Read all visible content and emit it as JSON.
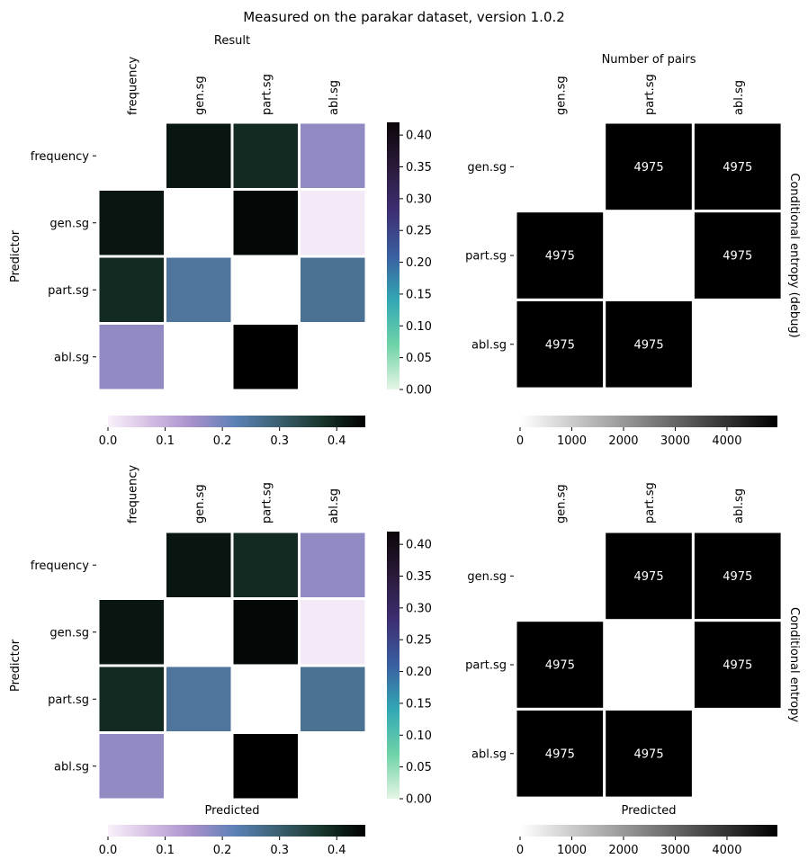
{
  "figure": {
    "title": "Measured on the parakar dataset, version 1.0.2"
  },
  "colorscales": {
    "cubehelix_bugn": [
      "#e6f5e6",
      "#6fd3a8",
      "#32a8b4",
      "#3a5fa0",
      "#3d2f73",
      "#2a1a3a",
      "#0b0508"
    ],
    "magma_purple": [
      "#f9f1fa",
      "#d4bde3",
      "#a58fca",
      "#5a80b4",
      "#3a5f6e",
      "#17352b",
      "#000000"
    ],
    "greys": [
      "#ffffff",
      "#000000"
    ]
  },
  "chart_data": [
    {
      "type": "heatmap",
      "panel": "top-left",
      "title": "Result",
      "xlabel": "",
      "ylabel": "Predictor",
      "columns": [
        "frequency",
        "gen.sg",
        "part.sg",
        "abl.sg"
      ],
      "rows": [
        "frequency",
        "gen.sg",
        "part.sg",
        "abl.sg"
      ],
      "values": [
        [
          null,
          0.42,
          0.39,
          0.17
        ],
        [
          0.42,
          null,
          0.44,
          0.01
        ],
        [
          0.39,
          0.25,
          null,
          0.26
        ],
        [
          0.17,
          null,
          0.45,
          null
        ]
      ],
      "colorbar_right": {
        "range": [
          0,
          0.42
        ],
        "ticks": [
          "0.00",
          "0.05",
          "0.10",
          "0.15",
          "0.20",
          "0.25",
          "0.30",
          "0.35",
          "0.40"
        ],
        "tick_values": [
          0,
          0.05,
          0.1,
          0.15,
          0.2,
          0.25,
          0.3,
          0.35,
          0.4
        ]
      },
      "colorbar_bottom": {
        "range": [
          0,
          0.45
        ],
        "ticks": [
          "0.0",
          "0.1",
          "0.2",
          "0.3",
          "0.4"
        ],
        "tick_values": [
          0,
          0.1,
          0.2,
          0.3,
          0.4
        ]
      }
    },
    {
      "type": "heatmap",
      "panel": "top-right",
      "title": "Number of pairs",
      "xlabel": "",
      "ylabel_right": "Conditional entropy (debug)",
      "columns": [
        "gen.sg",
        "part.sg",
        "abl.sg"
      ],
      "rows": [
        "gen.sg",
        "part.sg",
        "abl.sg"
      ],
      "values": [
        [
          null,
          4975,
          4975
        ],
        [
          4975,
          null,
          4975
        ],
        [
          4975,
          4975,
          null
        ]
      ],
      "annotations": [
        [
          "",
          "4975",
          "4975"
        ],
        [
          "4975",
          "",
          "4975"
        ],
        [
          "4975",
          "4975",
          ""
        ]
      ],
      "colorbar_bottom": {
        "range": [
          0,
          4975
        ],
        "ticks": [
          "0",
          "1000",
          "2000",
          "3000",
          "4000"
        ],
        "tick_values": [
          0,
          1000,
          2000,
          3000,
          4000
        ]
      }
    },
    {
      "type": "heatmap",
      "panel": "bottom-left",
      "title": "",
      "xlabel": "Predicted",
      "ylabel": "Predictor",
      "columns": [
        "frequency",
        "gen.sg",
        "part.sg",
        "abl.sg"
      ],
      "rows": [
        "frequency",
        "gen.sg",
        "part.sg",
        "abl.sg"
      ],
      "values": [
        [
          null,
          0.42,
          0.39,
          0.17
        ],
        [
          0.42,
          null,
          0.44,
          0.01
        ],
        [
          0.39,
          0.25,
          null,
          0.26
        ],
        [
          0.17,
          null,
          0.45,
          null
        ]
      ],
      "colorbar_right": {
        "range": [
          0,
          0.42
        ],
        "ticks": [
          "0.00",
          "0.05",
          "0.10",
          "0.15",
          "0.20",
          "0.25",
          "0.30",
          "0.35",
          "0.40"
        ],
        "tick_values": [
          0,
          0.05,
          0.1,
          0.15,
          0.2,
          0.25,
          0.3,
          0.35,
          0.4
        ]
      },
      "colorbar_bottom": {
        "range": [
          0,
          0.45
        ],
        "ticks": [
          "0.0",
          "0.1",
          "0.2",
          "0.3",
          "0.4"
        ],
        "tick_values": [
          0,
          0.1,
          0.2,
          0.3,
          0.4
        ]
      }
    },
    {
      "type": "heatmap",
      "panel": "bottom-right",
      "title": "",
      "xlabel": "Predicted",
      "ylabel_right": "Conditional entropy",
      "columns": [
        "gen.sg",
        "part.sg",
        "abl.sg"
      ],
      "rows": [
        "gen.sg",
        "part.sg",
        "abl.sg"
      ],
      "values": [
        [
          null,
          4975,
          4975
        ],
        [
          4975,
          null,
          4975
        ],
        [
          4975,
          4975,
          null
        ]
      ],
      "annotations": [
        [
          "",
          "4975",
          "4975"
        ],
        [
          "4975",
          "",
          "4975"
        ],
        [
          "4975",
          "4975",
          ""
        ]
      ],
      "colorbar_bottom": {
        "range": [
          0,
          4975
        ],
        "ticks": [
          "0",
          "1000",
          "2000",
          "3000",
          "4000"
        ],
        "tick_values": [
          0,
          1000,
          2000,
          3000,
          4000
        ]
      }
    }
  ]
}
